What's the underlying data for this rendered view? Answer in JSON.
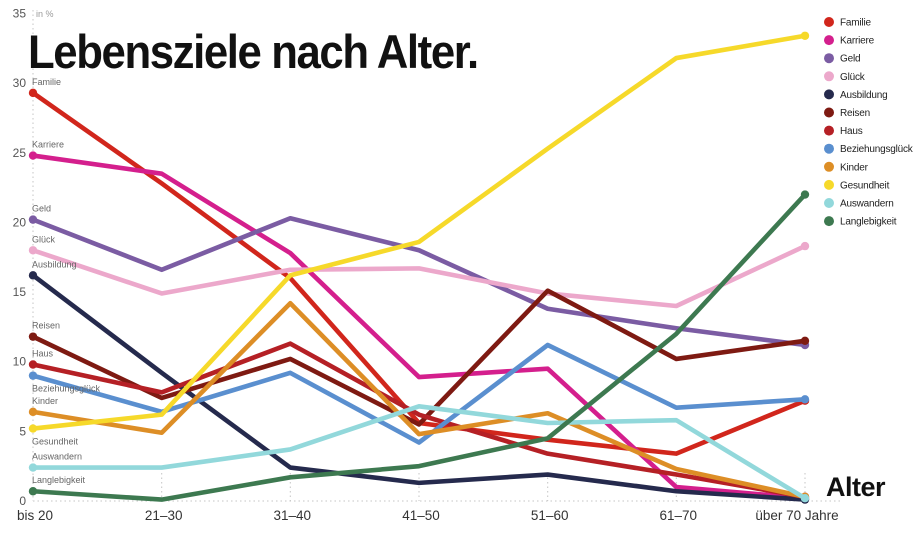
{
  "title": "Lebensziele nach Alter.",
  "axis_label_bottom_right": "Alter",
  "unit_label": "in %",
  "chart_data": {
    "type": "line",
    "title": "Lebensziele nach Alter.",
    "xlabel": "Alter",
    "ylabel": "in %",
    "categories": [
      "bis 20",
      "21–30",
      "31–40",
      "41–50",
      "51–60",
      "61–70",
      "über 70 Jahre"
    ],
    "ylim": [
      0,
      35
    ],
    "yticks": [
      0,
      5,
      10,
      15,
      20,
      25,
      30,
      35
    ],
    "grid": "dotted left axis, dotted zero baseline, short dotted tick risers",
    "legend_position": "top-right",
    "series": [
      {
        "name": "Familie",
        "color": "#d1261c",
        "values": [
          29.3,
          22.8,
          16.0,
          5.6,
          4.4,
          3.4,
          7.2
        ],
        "label_side": "above"
      },
      {
        "name": "Karriere",
        "color": "#d41f8d",
        "values": [
          24.8,
          23.5,
          17.8,
          8.9,
          9.5,
          1.0,
          0.2
        ],
        "label_side": "above"
      },
      {
        "name": "Geld",
        "color": "#7b5ca3",
        "values": [
          20.2,
          16.6,
          20.3,
          18.0,
          13.8,
          12.4,
          11.2
        ],
        "label_side": "above"
      },
      {
        "name": "Glück",
        "color": "#eca8cb",
        "values": [
          18.0,
          14.9,
          16.6,
          16.7,
          14.9,
          14.0,
          18.3
        ],
        "label_side": "above"
      },
      {
        "name": "Ausbildung",
        "color": "#252a4d",
        "values": [
          16.2,
          9.2,
          2.4,
          1.3,
          1.9,
          0.7,
          0.1
        ],
        "label_side": "above"
      },
      {
        "name": "Reisen",
        "color": "#7e1a12",
        "values": [
          11.8,
          7.4,
          10.2,
          5.5,
          15.1,
          10.2,
          11.5
        ],
        "label_side": "above"
      },
      {
        "name": "Haus",
        "color": "#b52025",
        "values": [
          9.8,
          7.8,
          11.3,
          6.2,
          3.4,
          1.9,
          0.3
        ],
        "label_side": "above"
      },
      {
        "name": "Beziehungsglück",
        "color": "#5a8fcf",
        "values": [
          9.0,
          6.4,
          9.2,
          4.2,
          11.2,
          6.7,
          7.3
        ],
        "label_side": "below"
      },
      {
        "name": "Kinder",
        "color": "#dd8e26",
        "values": [
          6.4,
          4.9,
          14.2,
          4.8,
          6.3,
          2.3,
          0.3
        ],
        "label_side": "above"
      },
      {
        "name": "Gesundheit",
        "color": "#f6d92a",
        "values": [
          5.2,
          6.2,
          16.2,
          18.6,
          25.3,
          31.8,
          33.4
        ],
        "label_side": "below"
      },
      {
        "name": "Auswandern",
        "color": "#92d8db",
        "values": [
          2.4,
          2.4,
          3.7,
          6.8,
          5.6,
          5.8,
          0.2
        ],
        "label_side": "above"
      },
      {
        "name": "Langlebigkeit",
        "color": "#3d7950",
        "values": [
          0.7,
          0.1,
          1.7,
          2.5,
          4.5,
          12.0,
          22.0
        ],
        "label_side": "above"
      }
    ]
  }
}
